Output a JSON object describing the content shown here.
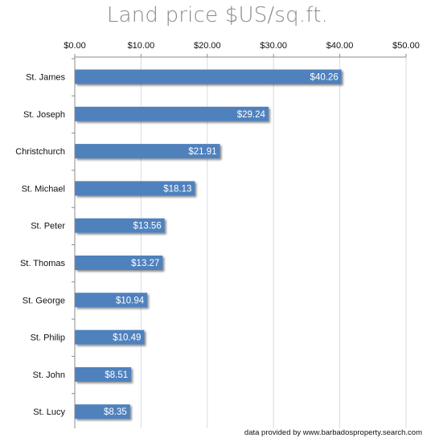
{
  "chart_data": {
    "type": "bar",
    "orientation": "horizontal",
    "title": "Land price $US/sq.ft.",
    "categories": [
      "St. James",
      "St. Joseph",
      "Christchurch",
      "St. Michael",
      "St. Peter",
      "St. Thomas",
      "St. George",
      "St. Philip",
      "St. John",
      "St. Lucy"
    ],
    "values": [
      40.26,
      29.24,
      21.91,
      18.13,
      13.56,
      13.27,
      10.94,
      10.49,
      8.51,
      8.35
    ],
    "data_labels": [
      "$40.26",
      "$29.24",
      "$21.91",
      "$18.13",
      "$13.56",
      "$13.27",
      "$10.94",
      "$10.49",
      "$8.51",
      "$8.35"
    ],
    "xlim": [
      0,
      50
    ],
    "ticks": [
      0,
      10,
      20,
      30,
      40,
      50
    ],
    "tick_labels": [
      "$0.00",
      "$10.00",
      "$20.00",
      "$30.00",
      "$40.00",
      "$50.00"
    ],
    "axis_position": "top",
    "grid": true,
    "bar_color": "#4f81bd",
    "grid_color": "#d6dde8"
  },
  "footer": {
    "credit": "data provided by www.barbadosproperty.search.com"
  }
}
